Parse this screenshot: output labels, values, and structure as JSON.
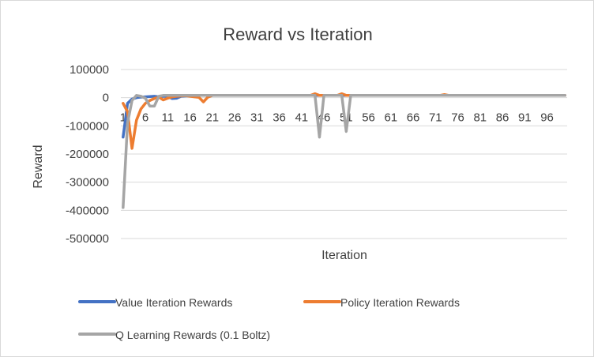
{
  "chart_data": {
    "type": "line",
    "title": "Reward vs Iteration",
    "xlabel": "Iteration",
    "ylabel": "Reward",
    "ylim": [
      -500000,
      100000
    ],
    "yticks": [
      "100000",
      "0",
      "-100000",
      "-200000",
      "-300000",
      "-400000",
      "-500000"
    ],
    "xtick_labels": [
      "1",
      "6",
      "11",
      "16",
      "21",
      "26",
      "31",
      "36",
      "41",
      "46",
      "51",
      "56",
      "61",
      "66",
      "71",
      "76",
      "81",
      "86",
      "91",
      "96"
    ],
    "x_count": 100,
    "grid": true,
    "legend_position": "bottom",
    "series": [
      {
        "name": "Value Iteration Rewards",
        "color": "#4472C4",
        "points": [
          [
            1,
            -140000
          ],
          [
            2,
            -20000
          ],
          [
            3,
            -5000
          ],
          [
            4,
            0
          ],
          [
            5,
            2000
          ],
          [
            6,
            3000
          ],
          [
            7,
            4000
          ],
          [
            8,
            5000
          ],
          [
            9,
            3000
          ],
          [
            10,
            5000
          ],
          [
            11,
            4000
          ],
          [
            12,
            -3000
          ],
          [
            13,
            -2000
          ],
          [
            14,
            5000
          ],
          [
            15,
            6000
          ],
          [
            16,
            7000
          ],
          [
            17,
            7000
          ],
          [
            18,
            8000
          ],
          [
            20,
            8000
          ],
          [
            100,
            8000
          ]
        ]
      },
      {
        "name": "Policy Iteration Rewards",
        "color": "#ED7D31",
        "points": [
          [
            1,
            -20000
          ],
          [
            2,
            -50000
          ],
          [
            3,
            -180000
          ],
          [
            4,
            -80000
          ],
          [
            5,
            -40000
          ],
          [
            6,
            -20000
          ],
          [
            7,
            -10000
          ],
          [
            8,
            -3000
          ],
          [
            9,
            2000
          ],
          [
            10,
            -8000
          ],
          [
            11,
            -2000
          ],
          [
            12,
            3000
          ],
          [
            13,
            5000
          ],
          [
            14,
            6000
          ],
          [
            15,
            7000
          ],
          [
            16,
            5000
          ],
          [
            17,
            3000
          ],
          [
            18,
            1000
          ],
          [
            19,
            -15000
          ],
          [
            20,
            2000
          ],
          [
            21,
            8000
          ],
          [
            43,
            8000
          ],
          [
            44,
            14000
          ],
          [
            45,
            8000
          ],
          [
            49,
            8000
          ],
          [
            50,
            14000
          ],
          [
            51,
            8000
          ],
          [
            72,
            8000
          ],
          [
            73,
            11000
          ],
          [
            74,
            8000
          ],
          [
            100,
            8000
          ]
        ]
      },
      {
        "name": "Q Learning Rewards (0.1 Boltz)",
        "color": "#A5A5A5",
        "points": [
          [
            1,
            -390000
          ],
          [
            2,
            -90000
          ],
          [
            3,
            -10000
          ],
          [
            4,
            8000
          ],
          [
            5,
            5000
          ],
          [
            6,
            -2000
          ],
          [
            7,
            -30000
          ],
          [
            8,
            -30000
          ],
          [
            9,
            5000
          ],
          [
            10,
            8000
          ],
          [
            44,
            8000
          ],
          [
            45,
            -140000
          ],
          [
            46,
            8000
          ],
          [
            50,
            8000
          ],
          [
            51,
            -120000
          ],
          [
            52,
            8000
          ],
          [
            100,
            8000
          ]
        ]
      }
    ]
  }
}
